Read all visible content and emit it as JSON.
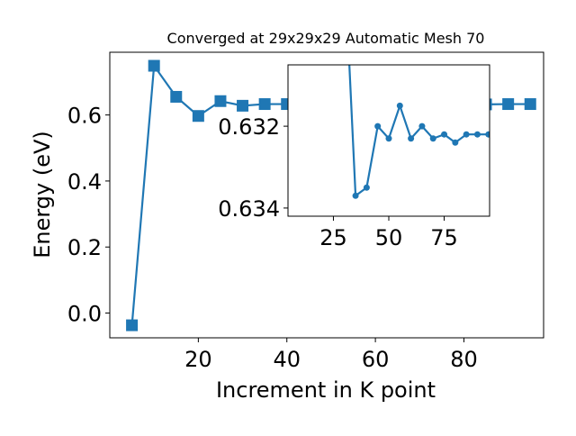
{
  "chart_data": [
    {
      "type": "line",
      "title": "Converged at 29x29x29 Automatic Mesh 70",
      "xlabel": "Increment in K point",
      "ylabel": "Energy (eV)",
      "xlim": [
        0,
        98
      ],
      "ylim": [
        -0.075,
        0.79
      ],
      "xticks": [
        20,
        40,
        60,
        80
      ],
      "yticks": [
        0.0,
        0.2,
        0.4,
        0.6
      ],
      "ytick_labels": [
        "0.0",
        "0.2",
        "0.4",
        "0.6"
      ],
      "marker": "square",
      "grid": false,
      "series": [
        {
          "x": [
            5,
            10,
            15,
            20,
            25,
            30,
            35,
            40,
            45,
            50,
            55,
            60,
            65,
            70,
            75,
            80,
            85,
            90,
            95
          ],
          "y": [
            -0.037,
            0.749,
            0.655,
            0.597,
            0.642,
            0.628,
            0.633,
            0.633,
            0.632,
            0.633,
            0.632,
            0.633,
            0.632,
            0.633,
            0.632,
            0.633,
            0.632,
            0.633,
            0.633
          ],
          "color": "#1f77b4"
        }
      ]
    },
    {
      "type": "line",
      "title": "",
      "xlabel": "",
      "ylabel": "",
      "xlim": [
        4.5,
        95.5
      ],
      "ylim": [
        0.6342,
        0.6305
      ],
      "xticks": [
        25,
        50,
        75
      ],
      "yticks": [
        0.632,
        0.634
      ],
      "ytick_labels": [
        "0.632",
        "0.634"
      ],
      "marker": "circle",
      "grid": false,
      "series": [
        {
          "x": [
            30,
            35,
            40,
            45,
            50,
            55,
            60,
            65,
            70,
            75,
            80,
            85,
            90,
            95
          ],
          "y": [
            0.628,
            0.6337,
            0.6335,
            0.632,
            0.6323,
            0.6315,
            0.6323,
            0.632,
            0.6323,
            0.6322,
            0.6324,
            0.6322,
            0.6322,
            0.6322
          ],
          "color": "#1f77b4"
        }
      ]
    }
  ]
}
